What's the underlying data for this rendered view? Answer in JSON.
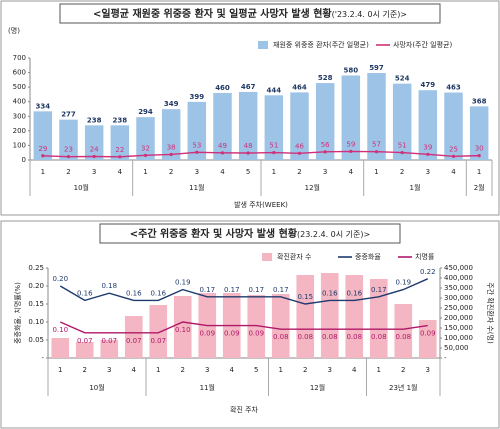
{
  "chart_data": [
    {
      "type": "combo",
      "title": "<일평균 재원중 위중증 환자 및 일평균 사망자 발생 현황",
      "subtitle": "('23.2.4. 0시 기준)>",
      "y_unit": "(명)",
      "xlabel": "발생 주차(WEEK)",
      "groups": [
        {
          "name": "10월",
          "categories": [
            "1",
            "2",
            "3",
            "4"
          ]
        },
        {
          "name": "11월",
          "categories": [
            "1",
            "2",
            "3",
            "4",
            "5"
          ]
        },
        {
          "name": "12월",
          "categories": [
            "1",
            "2",
            "3",
            "4"
          ]
        },
        {
          "name": "1월",
          "categories": [
            "1",
            "2",
            "3",
            "4"
          ]
        },
        {
          "name": "2월",
          "categories": [
            "1"
          ]
        }
      ],
      "series": [
        {
          "name": "재원중 위중증 환자(주간 일평균)",
          "type": "bar",
          "color": "#9dc3e6",
          "data_labels": "above",
          "values": [
            334,
            277,
            238,
            238,
            294,
            349,
            399,
            460,
            467,
            444,
            464,
            528,
            580,
            597,
            524,
            479,
            463,
            368
          ]
        },
        {
          "name": "사망자(주간 일평균)",
          "type": "line",
          "color": "#d0307a",
          "data_labels": "above",
          "marker": true,
          "values": [
            29,
            23,
            24,
            22,
            32,
            38,
            53,
            49,
            48,
            51,
            46,
            56,
            59,
            57,
            51,
            39,
            25,
            30
          ]
        }
      ],
      "ylim": [
        0,
        700
      ],
      "yticks": [
        0,
        100,
        200,
        300,
        400,
        500,
        600,
        700
      ]
    },
    {
      "type": "combo",
      "title": "<주간 위중증 환자 및 사망자 발생 현황",
      "subtitle": "(23.2.4. 0시 기준)>",
      "xlabel": "확진 주차",
      "ylabel": "중증화율, 치명률(%)",
      "y2label": "주간 확진환자 수(명)",
      "groups": [
        {
          "name": "10월",
          "categories": [
            "1",
            "2",
            "3",
            "4"
          ]
        },
        {
          "name": "11월",
          "categories": [
            "1",
            "2",
            "3",
            "4",
            "5"
          ]
        },
        {
          "name": "12월",
          "categories": [
            "1",
            "2",
            "3",
            "4"
          ]
        },
        {
          "name": "23년 1월",
          "categories": [
            "1",
            "2",
            "3"
          ]
        }
      ],
      "series": [
        {
          "name": "확진환자 수",
          "type": "bar",
          "axis": "y2",
          "color": "#f4b6c2",
          "values": [
            100000,
            80000,
            90000,
            210000,
            265000,
            310000,
            325000,
            325000,
            315000,
            320000,
            415000,
            425000,
            415000,
            395000,
            270000,
            190000
          ]
        },
        {
          "name": "중증화율",
          "type": "line",
          "color": "#1f3a6e",
          "data_labels": "above",
          "values": [
            0.2,
            0.16,
            0.18,
            0.16,
            0.16,
            0.19,
            0.17,
            0.17,
            0.17,
            0.17,
            0.15,
            0.16,
            0.16,
            0.17,
            0.19,
            0.22
          ],
          "value_labels": [
            "0.20",
            "0.16",
            "0.18",
            "0.16",
            "0.16",
            "0.19",
            "0.17",
            "0.17",
            "0.17",
            "0.17",
            "0.15",
            "0.16",
            "0.16",
            "0.17",
            "0.19",
            "0.22"
          ]
        },
        {
          "name": "치명률",
          "type": "line",
          "color": "#b0186a",
          "data_labels": "below",
          "values": [
            0.1,
            0.07,
            0.07,
            0.07,
            0.07,
            0.1,
            0.09,
            0.09,
            0.09,
            0.08,
            0.08,
            0.08,
            0.08,
            0.08,
            0.08,
            0.09
          ],
          "value_labels": [
            "0.10",
            "0.07",
            "0.07",
            "0.07",
            "0.07",
            "0.10",
            "0.09",
            "0.09",
            "0.09",
            "0.08",
            "0.08",
            "0.08",
            "0.08",
            "0.08",
            "0.08",
            "0.09"
          ]
        }
      ],
      "ylim": [
        0,
        0.25
      ],
      "yticks": [
        {
          "value": 0,
          "label": "-"
        },
        0.05,
        {
          "value": 0.1,
          "label": "0.10"
        },
        0.15,
        {
          "value": 0.2,
          "label": "0.20"
        },
        0.25
      ],
      "y2lim": [
        0,
        450000
      ],
      "y2ticks": [
        {
          "value": 0,
          "label": "-"
        },
        {
          "value": 50000,
          "label": "50,000"
        },
        {
          "value": 100000,
          "label": "100,000"
        },
        {
          "value": 150000,
          "label": "150,000"
        },
        {
          "value": 200000,
          "label": "200,000"
        },
        {
          "value": 250000,
          "label": "250,000"
        },
        {
          "value": 300000,
          "label": "300,000"
        },
        {
          "value": 350000,
          "label": "350,000"
        },
        {
          "value": 400000,
          "label": "400,000"
        },
        {
          "value": 450000,
          "label": "450,000"
        }
      ]
    }
  ]
}
